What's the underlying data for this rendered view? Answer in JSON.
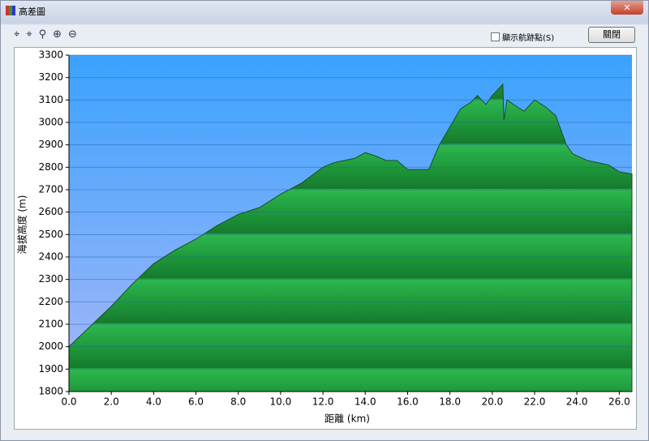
{
  "window": {
    "title": "高差圖",
    "checkbox": "顯示航跡點(S)",
    "button": "關閉"
  },
  "chart_data": {
    "type": "area",
    "xlabel": "距離 (km)",
    "ylabel": "海拔高度 (m)",
    "x": [
      0,
      1,
      2,
      3,
      4,
      5,
      6,
      7,
      8,
      9,
      10,
      11,
      12,
      12.5,
      13,
      13.5,
      14,
      14.5,
      15,
      15.5,
      16,
      16.5,
      17,
      17.5,
      18,
      18.5,
      19,
      19.3,
      19.7,
      20,
      20.5,
      20.55,
      20.7,
      21,
      21.5,
      22,
      22.5,
      23,
      23.5,
      23.8,
      24.5,
      25,
      25.5,
      26,
      26.6
    ],
    "values": [
      2000,
      2090,
      2180,
      2280,
      2370,
      2430,
      2480,
      2540,
      2590,
      2620,
      2680,
      2730,
      2800,
      2820,
      2830,
      2840,
      2865,
      2850,
      2830,
      2830,
      2790,
      2790,
      2790,
      2900,
      2980,
      3060,
      3090,
      3120,
      3080,
      3120,
      3170,
      3010,
      3100,
      3080,
      3050,
      3100,
      3070,
      3030,
      2900,
      2860,
      2830,
      2820,
      2810,
      2780,
      2770
    ],
    "color": "#22a040",
    "xlim": [
      0,
      26.6
    ],
    "xticks": [
      {
        "value": 0,
        "label": "0.0"
      },
      {
        "value": 2,
        "label": "2.0"
      },
      {
        "value": 4,
        "label": "4.0"
      },
      {
        "value": 6,
        "label": "6.0"
      },
      {
        "value": 8,
        "label": "8.0"
      },
      {
        "value": 10,
        "label": "10.0"
      },
      {
        "value": 12,
        "label": "12.0"
      },
      {
        "value": 14,
        "label": "14.0"
      },
      {
        "value": 16,
        "label": "16.0"
      },
      {
        "value": 18,
        "label": "18.0"
      },
      {
        "value": 20,
        "label": "20.0"
      },
      {
        "value": 22,
        "label": "22.0"
      },
      {
        "value": 24,
        "label": "24.0"
      },
      {
        "value": 26,
        "label": "26.0"
      }
    ],
    "ylim": [
      1800,
      3300
    ],
    "yticks": [
      1800,
      1900,
      2000,
      2100,
      2200,
      2300,
      2400,
      2500,
      2600,
      2700,
      2800,
      2900,
      3000,
      3100,
      3200,
      3300
    ],
    "grid": true
  }
}
